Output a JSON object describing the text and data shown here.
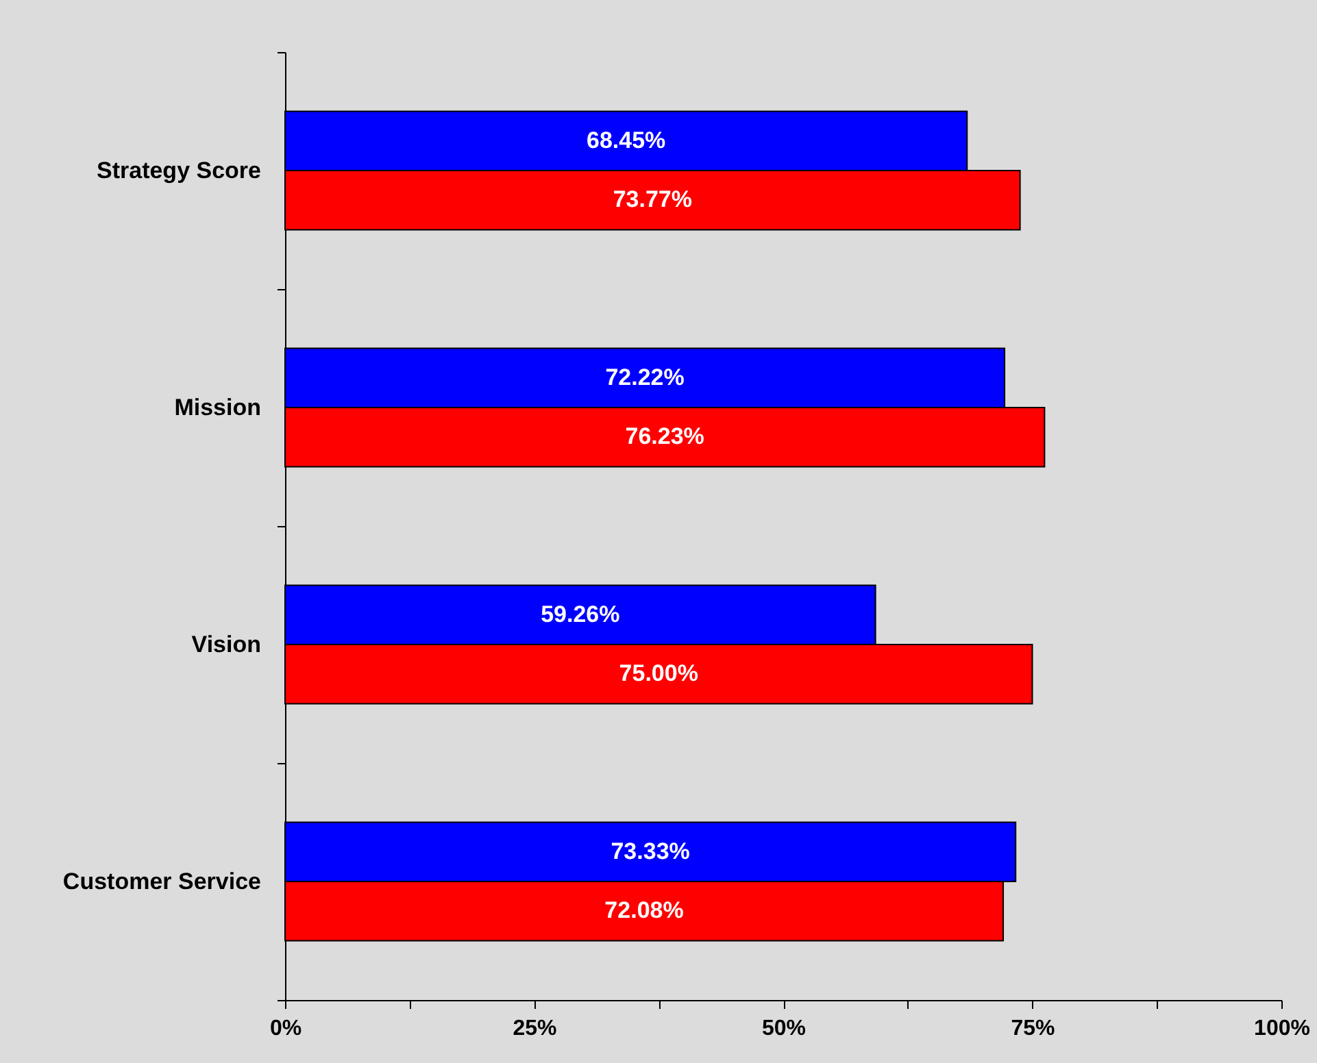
{
  "chart_data": {
    "type": "bar",
    "orientation": "horizontal",
    "categories": [
      "Strategy Score",
      "Mission",
      "Vision",
      "Customer Service"
    ],
    "series": [
      {
        "color": "#0000ff",
        "values": [
          68.45,
          72.22,
          59.26,
          73.33
        ],
        "value_labels": [
          "68.45%",
          "72.22%",
          "59.26%",
          "73.33%"
        ]
      },
      {
        "color": "#ff0000",
        "values": [
          73.77,
          76.23,
          75.0,
          72.08
        ],
        "value_labels": [
          "73.77%",
          "76.23%",
          "75.00%",
          "72.08%"
        ]
      }
    ],
    "xlim": [
      0,
      100
    ],
    "xticks": [
      {
        "value": 0,
        "label": "0%"
      },
      {
        "value": 12.5,
        "label": null
      },
      {
        "value": 25,
        "label": "25%"
      },
      {
        "value": 37.5,
        "label": null
      },
      {
        "value": 50,
        "label": "50%"
      },
      {
        "value": 62.5,
        "label": null
      },
      {
        "value": 75,
        "label": "75%"
      },
      {
        "value": 87.5,
        "label": null
      },
      {
        "value": 100,
        "label": "100%"
      }
    ]
  }
}
